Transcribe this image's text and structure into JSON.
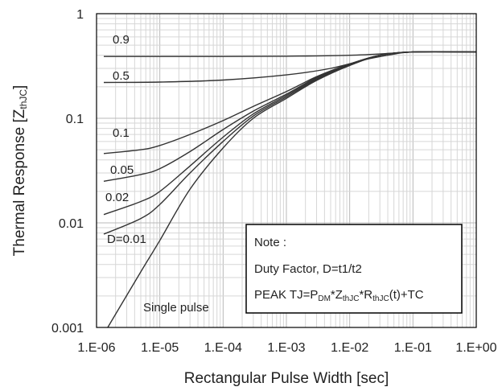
{
  "chart_data": {
    "type": "line",
    "xlabel": "Rectangular Pulse Width [sec]",
    "ylabel": "Thermal Response [Z",
    "ylabel_sub": "thJC",
    "ylabel_close": "]",
    "xscale": "log",
    "yscale": "log",
    "xlim": [
      1e-06,
      1
    ],
    "ylim": [
      0.001,
      1
    ],
    "x_ticks": [
      "1.E-06",
      "1.E-05",
      "1.E-04",
      "1.E-03",
      "1.E-02",
      "1.E-01",
      "1.E+00"
    ],
    "y_ticks": [
      "0.001",
      "0.01",
      "0.1",
      "1"
    ],
    "grid": true,
    "series": [
      {
        "name": "0.9",
        "x": [
          1.3e-06,
          1e-05,
          0.0001,
          0.001,
          0.01,
          0.05,
          0.1,
          1
        ],
        "y": [
          0.39,
          0.39,
          0.39,
          0.392,
          0.4,
          0.42,
          0.43,
          0.43
        ]
      },
      {
        "name": "0.5",
        "x": [
          1.3e-06,
          1e-05,
          0.0001,
          0.001,
          0.005,
          0.02,
          0.05,
          0.1,
          1
        ],
        "y": [
          0.22,
          0.222,
          0.232,
          0.26,
          0.3,
          0.37,
          0.41,
          0.43,
          0.43
        ]
      },
      {
        "name": "0.1",
        "x": [
          1.3e-06,
          5e-06,
          1e-05,
          3e-05,
          0.0001,
          0.0003,
          0.001,
          0.003,
          0.01,
          0.03,
          0.1,
          1
        ],
        "y": [
          0.046,
          0.05,
          0.055,
          0.07,
          0.095,
          0.13,
          0.18,
          0.25,
          0.33,
          0.4,
          0.43,
          0.43
        ]
      },
      {
        "name": "0.05",
        "x": [
          1.3e-06,
          5e-06,
          1e-05,
          3e-05,
          0.0001,
          0.0003,
          0.001,
          0.003,
          0.01,
          0.03,
          0.1,
          1
        ],
        "y": [
          0.025,
          0.029,
          0.033,
          0.048,
          0.078,
          0.117,
          0.17,
          0.245,
          0.33,
          0.4,
          0.43,
          0.43
        ]
      },
      {
        "name": "0.02",
        "x": [
          1.3e-06,
          5e-06,
          1e-05,
          3e-05,
          0.0001,
          0.0003,
          0.001,
          0.003,
          0.01,
          0.03,
          0.1,
          1
        ],
        "y": [
          0.012,
          0.016,
          0.02,
          0.035,
          0.066,
          0.11,
          0.165,
          0.24,
          0.325,
          0.4,
          0.43,
          0.43
        ]
      },
      {
        "name": "D=0.01",
        "x": [
          1.3e-06,
          5e-06,
          1e-05,
          3e-05,
          0.0001,
          0.0003,
          0.001,
          0.003,
          0.01,
          0.03,
          0.1,
          1
        ],
        "y": [
          0.0078,
          0.011,
          0.015,
          0.03,
          0.06,
          0.105,
          0.16,
          0.235,
          0.32,
          0.4,
          0.43,
          0.43
        ]
      },
      {
        "name": "Single pulse",
        "x": [
          1.5e-06,
          5e-06,
          1e-05,
          3e-05,
          0.0001,
          0.0003,
          0.001,
          0.003,
          0.01,
          0.03,
          0.1,
          1
        ],
        "y": [
          0.001,
          0.0034,
          0.0068,
          0.021,
          0.052,
          0.1,
          0.155,
          0.23,
          0.32,
          0.4,
          0.43,
          0.43
        ]
      }
    ],
    "note": {
      "title": "Note :",
      "line1": "Duty Factor, D=t1/t2",
      "line2": [
        {
          "t": "PEAK TJ=P"
        },
        {
          "t": "DM",
          "sub": true
        },
        {
          "t": "*Z"
        },
        {
          "t": "thJC",
          "sub": true
        },
        {
          "t": "*R"
        },
        {
          "t": "thJC",
          "sub": true
        },
        {
          "t": "(t)+TC"
        }
      ]
    }
  },
  "colors": {
    "curve": "#333333",
    "frame": "#000000",
    "grid_major": "#b9b9b9",
    "grid_minor": "#d6d6d6"
  }
}
